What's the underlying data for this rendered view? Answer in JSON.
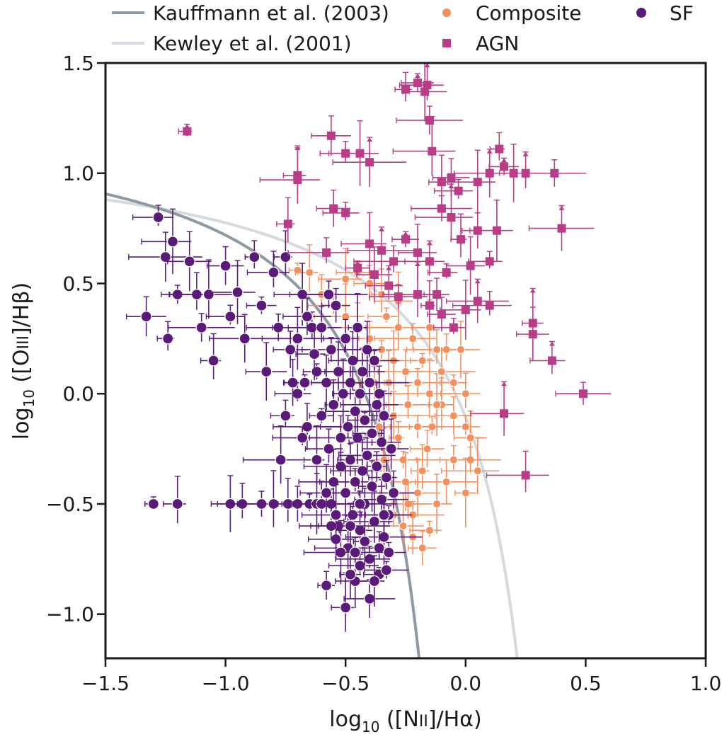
{
  "chart_data": {
    "type": "scatter",
    "title": "",
    "xlabel": "log10([NII]/Hα)",
    "ylabel": "log10([OIII]/Hβ)",
    "xlabel_parts": {
      "main": "log",
      "sub": "10",
      "rest": " ([N",
      "ion": "II",
      "tail": "]/Hα)"
    },
    "ylabel_parts": {
      "main": "log",
      "sub": "10",
      "rest": " ([O",
      "ion": "III",
      "tail": "]/Hβ)"
    },
    "xlim": [
      -1.5,
      1.0
    ],
    "ylim": [
      -1.2,
      1.5
    ],
    "xticks": [
      -1.5,
      -1.0,
      -0.5,
      0.0,
      0.5,
      1.0
    ],
    "yticks": [
      -1.0,
      -0.5,
      0.0,
      0.5,
      1.0,
      1.5
    ],
    "xtick_labels": [
      "−1.5",
      "−1.0",
      "−0.5",
      "0.0",
      "0.5",
      "1.0"
    ],
    "ytick_labels": [
      "−1.0",
      "−0.5",
      "0.0",
      "0.5",
      "1.0",
      "1.5"
    ],
    "grid": false,
    "legend_position": "top (outside)",
    "curves": [
      {
        "name": "Kauffmann et al. (2003)",
        "color": "#8e99a4",
        "numerator": 0.61,
        "pole": 0.05,
        "offset": 1.3
      },
      {
        "name": "Kewley et al. (2001)",
        "color": "#d5dae0",
        "numerator": 0.61,
        "pole": 0.47,
        "offset": 1.19
      }
    ],
    "series": [
      {
        "name": "SF",
        "marker": "circle",
        "color": "#5a1a7a",
        "points": [
          [
            -1.3,
            -0.5
          ],
          [
            -1.2,
            -0.5
          ],
          [
            -1.33,
            0.35
          ],
          [
            -1.28,
            0.8
          ],
          [
            -1.22,
            0.69
          ],
          [
            -1.25,
            0.62
          ],
          [
            -1.24,
            0.25
          ],
          [
            -1.2,
            0.45
          ],
          [
            -1.15,
            0.6
          ],
          [
            -1.12,
            0.45
          ],
          [
            -1.1,
            0.3
          ],
          [
            -1.07,
            0.45
          ],
          [
            -1.05,
            0.15
          ],
          [
            -1.0,
            0.58
          ],
          [
            -0.98,
            0.35
          ],
          [
            -0.95,
            0.46
          ],
          [
            -0.92,
            0.25
          ],
          [
            -0.88,
            0.62
          ],
          [
            -0.85,
            0.4
          ],
          [
            -0.83,
            0.1
          ],
          [
            -0.8,
            0.55
          ],
          [
            -0.78,
            0.3
          ],
          [
            -0.77,
            -0.3
          ],
          [
            -0.75,
            0.62
          ],
          [
            -0.73,
            0.2
          ],
          [
            -0.7,
            0.0
          ],
          [
            -0.68,
            0.45
          ],
          [
            -0.66,
            -0.15
          ],
          [
            -0.64,
            0.3
          ],
          [
            -0.62,
            0.1
          ],
          [
            -0.98,
            -0.5
          ],
          [
            -0.93,
            -0.5
          ],
          [
            -0.85,
            -0.5
          ],
          [
            -0.8,
            -0.5
          ],
          [
            -0.74,
            -0.5
          ],
          [
            -0.7,
            -0.5
          ],
          [
            -0.65,
            -0.5
          ],
          [
            -0.62,
            -0.5
          ],
          [
            -0.6,
            -0.5
          ],
          [
            -0.56,
            -0.5
          ],
          [
            -0.6,
            -0.1
          ],
          [
            -0.58,
            0.05
          ],
          [
            -0.57,
            -0.25
          ],
          [
            -0.56,
            0.2
          ],
          [
            -0.55,
            -0.4
          ],
          [
            -0.55,
            -0.05
          ],
          [
            -0.54,
            0.4
          ],
          [
            -0.53,
            -0.6
          ],
          [
            -0.53,
            0.1
          ],
          [
            -0.52,
            -0.2
          ],
          [
            -0.52,
            -0.33
          ],
          [
            -0.51,
            0.0
          ],
          [
            -0.5,
            -0.45
          ],
          [
            -0.5,
            0.25
          ],
          [
            -0.49,
            -0.15
          ],
          [
            -0.49,
            -0.7
          ],
          [
            -0.48,
            0.05
          ],
          [
            -0.48,
            -0.3
          ],
          [
            -0.47,
            -0.55
          ],
          [
            -0.47,
            0.15
          ],
          [
            -0.46,
            -0.08
          ],
          [
            -0.46,
            -0.4
          ],
          [
            -0.45,
            0.3
          ],
          [
            -0.45,
            -0.2
          ],
          [
            -0.44,
            -0.62
          ],
          [
            -0.44,
            0.0
          ],
          [
            -0.43,
            -0.35
          ],
          [
            -0.43,
            0.1
          ],
          [
            -0.42,
            -0.5
          ],
          [
            -0.42,
            -0.12
          ],
          [
            -0.41,
            0.2
          ],
          [
            -0.41,
            -0.28
          ],
          [
            -0.4,
            -0.75
          ],
          [
            -0.4,
            0.05
          ],
          [
            -0.39,
            -0.42
          ],
          [
            -0.39,
            -0.18
          ],
          [
            -0.38,
            0.15
          ],
          [
            -0.38,
            -0.58
          ],
          [
            -0.37,
            -0.05
          ],
          [
            -0.37,
            -0.33
          ],
          [
            -0.36,
            -0.82
          ],
          [
            -0.36,
            0.0
          ],
          [
            -0.35,
            -0.48
          ],
          [
            -0.35,
            -0.22
          ],
          [
            -0.34,
            -0.65
          ],
          [
            -0.34,
            -0.1
          ],
          [
            -0.33,
            -0.38
          ],
          [
            -0.32,
            -0.55
          ],
          [
            -0.31,
            -0.25
          ],
          [
            -0.3,
            -0.45
          ],
          [
            -0.58,
            -0.87
          ],
          [
            -0.5,
            -0.97
          ],
          [
            -0.46,
            -0.85
          ],
          [
            -0.4,
            -0.93
          ],
          [
            -0.44,
            -0.78
          ],
          [
            -0.52,
            -0.72
          ],
          [
            -0.48,
            -0.82
          ],
          [
            -0.36,
            -0.7
          ],
          [
            -0.33,
            -0.8
          ],
          [
            -0.54,
            -0.66
          ],
          [
            -0.6,
            0.3
          ],
          [
            -0.57,
            0.45
          ],
          [
            -0.62,
            -0.3
          ],
          [
            -0.63,
            0.18
          ],
          [
            -0.66,
            0.35
          ],
          [
            -0.68,
            -0.2
          ],
          [
            -0.7,
            0.25
          ],
          [
            -0.72,
            0.05
          ],
          [
            -0.75,
            -0.1
          ],
          [
            -0.67,
            0.05
          ],
          [
            -0.58,
            -0.45
          ],
          [
            -0.56,
            -0.6
          ],
          [
            -0.44,
            -0.5
          ],
          [
            -0.42,
            -0.67
          ],
          [
            -0.38,
            -0.85
          ],
          [
            -0.34,
            -0.55
          ],
          [
            -0.32,
            -0.72
          ],
          [
            -0.54,
            -0.55
          ],
          [
            -0.48,
            -0.6
          ],
          [
            -0.46,
            -0.72
          ]
        ]
      },
      {
        "name": "Composite",
        "marker": "circle",
        "color": "#f4905e",
        "points": [
          [
            -0.7,
            0.56
          ],
          [
            -0.65,
            0.55
          ],
          [
            -0.6,
            0.45
          ],
          [
            -0.55,
            0.4
          ],
          [
            -0.5,
            0.35
          ],
          [
            -0.45,
            0.3
          ],
          [
            -0.4,
            0.25
          ],
          [
            -0.35,
            0.2
          ],
          [
            -0.3,
            0.15
          ],
          [
            -0.25,
            0.1
          ],
          [
            -0.2,
            0.05
          ],
          [
            -0.15,
            0.0
          ],
          [
            -0.1,
            -0.05
          ],
          [
            -0.05,
            -0.1
          ],
          [
            0.0,
            -0.15
          ],
          [
            -0.32,
            0.05
          ],
          [
            -0.3,
            -0.1
          ],
          [
            -0.28,
            -0.2
          ],
          [
            -0.26,
            -0.3
          ],
          [
            -0.25,
            -0.4
          ],
          [
            -0.24,
            -0.5
          ],
          [
            -0.22,
            -0.55
          ],
          [
            -0.2,
            -0.45
          ],
          [
            -0.18,
            -0.35
          ],
          [
            -0.16,
            -0.25
          ],
          [
            -0.14,
            -0.15
          ],
          [
            -0.12,
            -0.05
          ],
          [
            -0.1,
            0.1
          ],
          [
            -0.08,
            0.2
          ],
          [
            -0.05,
            0.05
          ],
          [
            -0.02,
            0.2
          ],
          [
            0.0,
            0.0
          ],
          [
            0.02,
            -0.3
          ],
          [
            0.05,
            -0.35
          ],
          [
            -0.35,
            0.45
          ],
          [
            -0.4,
            0.5
          ],
          [
            -0.45,
            0.55
          ],
          [
            -0.5,
            0.52
          ],
          [
            -0.28,
            0.3
          ],
          [
            -0.22,
            0.25
          ],
          [
            -0.18,
            0.15
          ],
          [
            -0.15,
            0.3
          ],
          [
            -0.12,
            0.2
          ],
          [
            -0.3,
            -0.55
          ],
          [
            -0.26,
            -0.6
          ],
          [
            -0.22,
            -0.65
          ],
          [
            -0.18,
            -0.7
          ],
          [
            -0.15,
            -0.62
          ],
          [
            -0.12,
            -0.5
          ],
          [
            -0.08,
            -0.4
          ],
          [
            -0.05,
            -0.3
          ],
          [
            0.0,
            -0.45
          ],
          [
            0.02,
            -0.2
          ],
          [
            -0.24,
            -0.05
          ],
          [
            -0.2,
            -0.15
          ],
          [
            -0.34,
            -0.3
          ],
          [
            -0.36,
            -0.15
          ],
          [
            -0.38,
            0.05
          ],
          [
            -0.33,
            0.35
          ],
          [
            -0.28,
            0.42
          ]
        ]
      },
      {
        "name": "AGN",
        "marker": "square",
        "color": "#b83c86",
        "points": [
          [
            -1.16,
            1.19
          ],
          [
            -0.7,
            0.99
          ],
          [
            -0.56,
            1.17
          ],
          [
            -0.5,
            1.09
          ],
          [
            -0.44,
            1.09
          ],
          [
            -0.4,
            1.05
          ],
          [
            -0.25,
            1.38
          ],
          [
            -0.2,
            1.41
          ],
          [
            -0.17,
            1.37
          ],
          [
            -0.16,
            1.4
          ],
          [
            -0.15,
            1.24
          ],
          [
            -0.14,
            1.1
          ],
          [
            -0.1,
            0.96
          ],
          [
            -0.06,
            0.98
          ],
          [
            -0.03,
            0.92
          ],
          [
            0.05,
            0.96
          ],
          [
            0.1,
            1.0
          ],
          [
            0.14,
            1.11
          ],
          [
            0.16,
            1.03
          ],
          [
            0.2,
            1.0
          ],
          [
            0.25,
            1.0
          ],
          [
            0.37,
            1.0
          ],
          [
            -0.7,
            0.97
          ],
          [
            -0.74,
            0.77
          ],
          [
            -0.55,
            0.84
          ],
          [
            -0.5,
            0.82
          ],
          [
            -0.4,
            0.68
          ],
          [
            -0.35,
            0.65
          ],
          [
            -0.3,
            0.6
          ],
          [
            -0.25,
            0.7
          ],
          [
            -0.2,
            0.64
          ],
          [
            -0.15,
            0.6
          ],
          [
            -0.1,
            0.84
          ],
          [
            -0.06,
            0.8
          ],
          [
            -0.02,
            0.7
          ],
          [
            0.05,
            0.74
          ],
          [
            0.1,
            0.6
          ],
          [
            0.13,
            0.74
          ],
          [
            0.4,
            0.75
          ],
          [
            -0.58,
            0.64
          ],
          [
            -0.45,
            0.57
          ],
          [
            -0.38,
            0.54
          ],
          [
            -0.32,
            0.49
          ],
          [
            -0.28,
            0.44
          ],
          [
            -0.2,
            0.45
          ],
          [
            -0.15,
            0.4
          ],
          [
            -0.1,
            0.36
          ],
          [
            -0.05,
            0.3
          ],
          [
            0.0,
            0.38
          ],
          [
            0.05,
            0.42
          ],
          [
            0.1,
            0.4
          ],
          [
            0.28,
            0.32
          ],
          [
            0.28,
            0.27
          ],
          [
            0.36,
            0.15
          ],
          [
            0.49,
            0.0
          ],
          [
            0.16,
            -0.09
          ],
          [
            0.25,
            -0.37
          ],
          [
            -0.12,
            0.45
          ],
          [
            -0.08,
            0.55
          ],
          [
            0.02,
            0.58
          ]
        ]
      }
    ]
  },
  "legend": {
    "items": [
      {
        "label": "Kauffmann et al. (2003)",
        "kind": "line",
        "color": "#8e99a4"
      },
      {
        "label": "Kewley et al. (2001)",
        "kind": "line",
        "color": "#d5dae0"
      },
      {
        "label": "Composite",
        "kind": "circle",
        "color": "#f4905e"
      },
      {
        "label": "AGN",
        "kind": "square",
        "color": "#b83c86"
      },
      {
        "label": "SF",
        "kind": "circle",
        "color": "#5a1a7a"
      }
    ]
  }
}
